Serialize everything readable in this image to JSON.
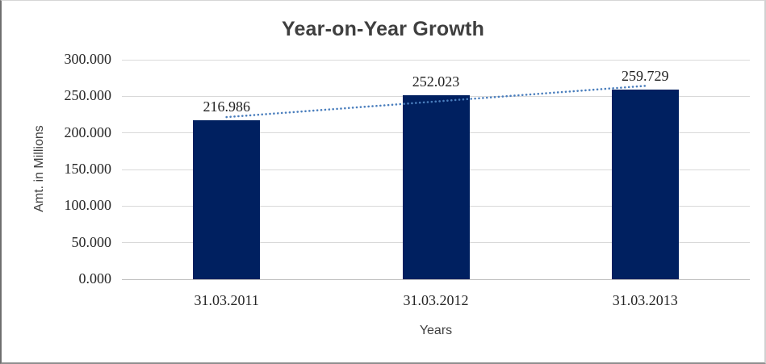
{
  "chart_data": {
    "type": "bar",
    "title": "Year-on-Year Growth",
    "xlabel": "Years",
    "ylabel": "Amt. in Millions",
    "categories": [
      "31.03.2011",
      "31.03.2012",
      "31.03.2013"
    ],
    "values": [
      216.986,
      252.023,
      259.729
    ],
    "data_labels": [
      "216.986",
      "252.023",
      "259.729"
    ],
    "ylim": [
      0,
      300
    ],
    "y_ticks": [
      {
        "value": 0,
        "label": "0.000"
      },
      {
        "value": 50,
        "label": "50.000"
      },
      {
        "value": 100,
        "label": "100.000"
      },
      {
        "value": 150,
        "label": "150.000"
      },
      {
        "value": 200,
        "label": "200.000"
      },
      {
        "value": 250,
        "label": "250.000"
      },
      {
        "value": 300,
        "label": "300.000"
      }
    ],
    "grid": true,
    "legend": "none",
    "trendline": {
      "type": "linear",
      "style": "dotted",
      "start_value": 221.6,
      "end_value": 264.3
    },
    "colors": {
      "bar": "#002060",
      "gridline": "#d9d9d9",
      "axis_line": "#bfbfbf",
      "trendline": "#4a7ebd",
      "title_text": "#3f3f3f",
      "axis_title_text": "#404040",
      "tick_text": "#262626",
      "data_label_text": "#1f1f1f"
    }
  }
}
